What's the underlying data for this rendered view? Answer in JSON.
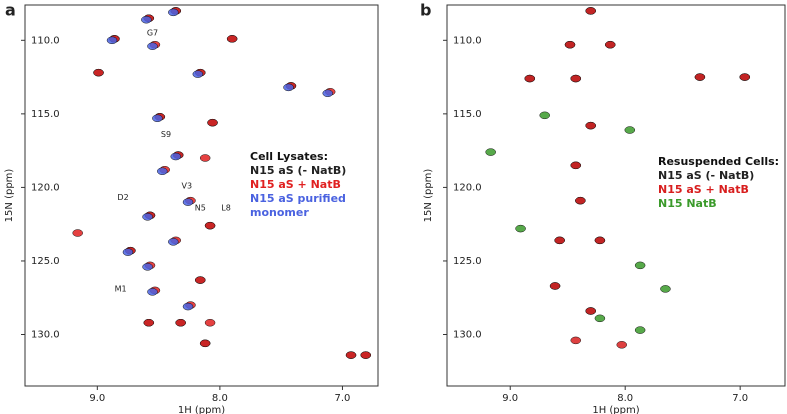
{
  "chart_data": [
    {
      "type": "scatter",
      "panel_label": "a",
      "xlabel": "1H (ppm)",
      "ylabel": "15N (ppm)",
      "xlim": [
        9.59,
        6.71
      ],
      "ylim": [
        107.6,
        133.5
      ],
      "xticks": [
        {
          "value": 9,
          "label": "9.0"
        },
        {
          "value": 8,
          "label": "8.0"
        },
        {
          "value": 7,
          "label": "7.0"
        }
      ],
      "yticks": [
        {
          "value": 110,
          "label": "110.0"
        },
        {
          "value": 115,
          "label": "115.0"
        },
        {
          "value": 120,
          "label": "120.0"
        },
        {
          "value": 125,
          "label": "125.0"
        },
        {
          "value": 130,
          "label": "130.0"
        }
      ],
      "legend_title": "Cell Lysates:",
      "series": [
        {
          "name": "N15 aS (- NatB)",
          "color": "#222222",
          "x": [
            8.58,
            8.36,
            7.9,
            8.86,
            8.99,
            8.16,
            7.42,
            8.49,
            8.06,
            8.34,
            8.08,
            8.57,
            8.73,
            8.16,
            8.58,
            8.32,
            8.12,
            6.93,
            6.81
          ],
          "y": [
            108.5,
            108.0,
            109.9,
            109.9,
            112.2,
            112.2,
            113.1,
            115.2,
            115.6,
            117.8,
            122.6,
            121.9,
            124.3,
            126.3,
            129.2,
            129.2,
            130.6,
            131.4,
            131.4
          ]
        },
        {
          "name": "N15 aS + NatB",
          "color": "#e02020",
          "x": [
            8.58,
            8.36,
            7.9,
            8.86,
            8.53,
            8.99,
            8.16,
            7.42,
            7.1,
            8.49,
            8.06,
            8.34,
            8.12,
            8.45,
            8.08,
            8.24,
            8.57,
            8.73,
            8.36,
            8.57,
            8.16,
            8.53,
            8.24,
            8.58,
            8.32,
            8.08,
            8.12,
            6.93,
            6.81,
            9.16
          ],
          "y": [
            108.5,
            108.0,
            109.9,
            109.9,
            110.3,
            112.2,
            112.2,
            113.1,
            113.5,
            115.2,
            115.6,
            117.8,
            118.0,
            118.8,
            122.6,
            120.9,
            121.9,
            124.3,
            123.6,
            125.3,
            126.3,
            127.0,
            128.0,
            129.2,
            129.2,
            129.2,
            130.6,
            131.4,
            131.4,
            123.1
          ]
        },
        {
          "name": "N15 aS purified monomer",
          "color": "#4a62e0",
          "x": [
            8.6,
            8.38,
            8.88,
            8.55,
            8.18,
            7.44,
            7.12,
            8.51,
            8.36,
            8.47,
            8.26,
            8.59,
            8.75,
            8.38,
            8.59,
            8.55,
            8.26
          ],
          "y": [
            108.6,
            108.1,
            110.0,
            110.4,
            112.3,
            113.2,
            113.6,
            115.3,
            117.9,
            118.9,
            121.0,
            122.0,
            124.4,
            123.7,
            125.4,
            127.1,
            128.1
          ]
        }
      ],
      "annotations": [
        {
          "text": "G7",
          "x": 8.55,
          "y": 109.5
        },
        {
          "text": "S9",
          "x": 8.44,
          "y": 116.4
        },
        {
          "text": "V3",
          "x": 8.27,
          "y": 119.9
        },
        {
          "text": "D2",
          "x": 8.79,
          "y": 120.7
        },
        {
          "text": "N5",
          "x": 8.16,
          "y": 121.4
        },
        {
          "text": "L8",
          "x": 7.95,
          "y": 121.4
        },
        {
          "text": "M1",
          "x": 8.81,
          "y": 126.9
        }
      ]
    },
    {
      "type": "scatter",
      "panel_label": "b",
      "xlabel": "1H (ppm)",
      "ylabel": "15N (ppm)",
      "xlim": [
        9.55,
        6.61
      ],
      "ylim": [
        107.6,
        133.5
      ],
      "xticks": [
        {
          "value": 9,
          "label": "9.0"
        },
        {
          "value": 8,
          "label": "8.0"
        },
        {
          "value": 7,
          "label": "7.0"
        }
      ],
      "yticks": [
        {
          "value": 110,
          "label": "110.0"
        },
        {
          "value": 115,
          "label": "115.0"
        },
        {
          "value": 120,
          "label": "120.0"
        },
        {
          "value": 125,
          "label": "125.0"
        },
        {
          "value": 130,
          "label": "130.0"
        }
      ],
      "legend_title": "Resuspended Cells:",
      "series": [
        {
          "name": "N15 aS (- NatB)",
          "color": "#222222",
          "x": [
            8.48,
            8.13,
            8.3,
            8.83,
            8.43,
            7.35,
            6.96,
            8.3,
            8.43,
            8.39,
            8.57,
            8.22,
            8.61,
            8.3
          ],
          "y": [
            110.3,
            110.3,
            108.0,
            112.6,
            112.6,
            112.5,
            112.5,
            115.8,
            118.5,
            120.9,
            123.6,
            123.6,
            126.7,
            128.4
          ]
        },
        {
          "name": "N15 aS + NatB",
          "color": "#d81e1e",
          "x": [
            8.48,
            8.13,
            8.3,
            8.83,
            8.43,
            7.35,
            6.96,
            8.3,
            8.43,
            8.39,
            8.57,
            8.22,
            8.61,
            8.3,
            8.43,
            8.03
          ],
          "y": [
            110.3,
            110.3,
            108.0,
            112.6,
            112.6,
            112.5,
            112.5,
            115.8,
            118.5,
            120.9,
            123.6,
            123.6,
            126.7,
            128.4,
            130.4,
            130.7
          ]
        },
        {
          "name": "N15 NatB",
          "color": "#3a9a2a",
          "x": [
            8.7,
            7.96,
            9.17,
            8.91,
            7.87,
            8.22,
            7.87,
            7.65
          ],
          "y": [
            115.1,
            116.1,
            117.6,
            122.8,
            125.3,
            128.9,
            129.7,
            126.9
          ]
        }
      ],
      "annotations": []
    }
  ]
}
